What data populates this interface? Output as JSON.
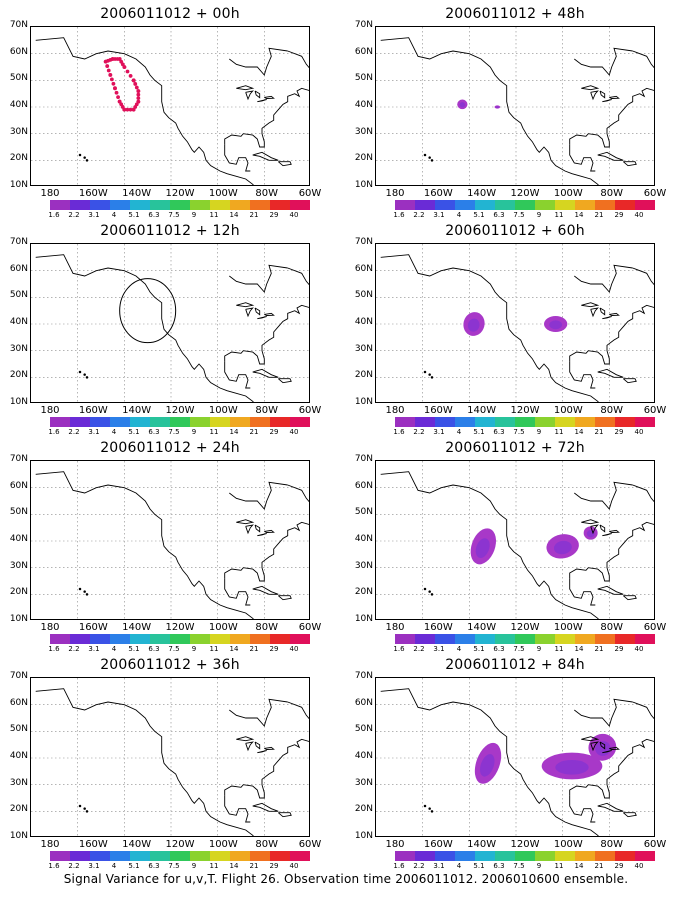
{
  "panels": [
    {
      "title": "2006011012 + 00h"
    },
    {
      "title": "2006011012 + 48h"
    },
    {
      "title": "2006011012 + 12h"
    },
    {
      "title": "2006011012 + 60h"
    },
    {
      "title": "2006011012 + 24h"
    },
    {
      "title": "2006011012 + 72h"
    },
    {
      "title": "2006011012 + 36h"
    },
    {
      "title": "2006011012 + 84h"
    }
  ],
  "lat_labels": [
    "70N",
    "60N",
    "50N",
    "40N",
    "30N",
    "20N",
    "10N"
  ],
  "lon_labels": [
    "180",
    "160W",
    "140W",
    "120W",
    "100W",
    "80W",
    "60W"
  ],
  "colorbar": {
    "colors": [
      "#9b30c0",
      "#6a2bd6",
      "#3a52e6",
      "#2b7fe8",
      "#22b4d2",
      "#28c39b",
      "#30c85a",
      "#8ad22e",
      "#d6d520",
      "#f0a820",
      "#f07020",
      "#e82828",
      "#e0105a"
    ],
    "labels": [
      "1.6",
      "2.2",
      "3.1",
      "4",
      "5.1",
      "6.3",
      "7.5",
      "9",
      "11",
      "14",
      "21",
      "29",
      "40"
    ]
  },
  "caption": "Signal Variance for u,v,T. Flight 26. Observation time 2006011012. 2006010600 ensemble."
}
